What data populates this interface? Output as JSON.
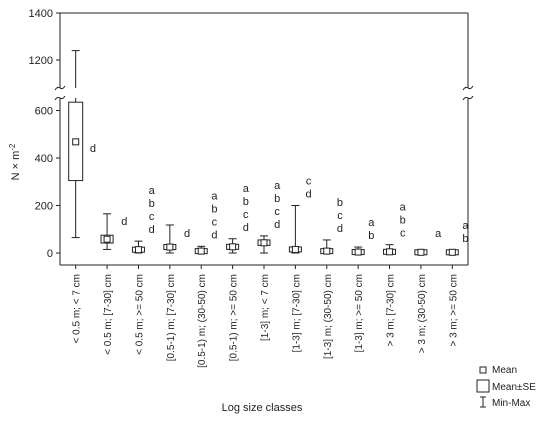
{
  "chart_data": {
    "type": "box",
    "ylabel": "N × m",
    "ylabel_sup": "-2",
    "xlabel": "Log size classes",
    "y_axis_break": [
      650,
      1000
    ],
    "yticks_lower": [
      "0",
      "200",
      "400",
      "600"
    ],
    "yticks_upper": [
      "1200",
      "1400"
    ],
    "categories": [
      "< 0.5 m; < 7 cm",
      "< 0.5 m; [7-30] cm",
      "< 0.5 m; >= 50 cm",
      "[0.5-1) m; [7-30] cm",
      "[0.5-1) m; (30-50) cm",
      "[0.5-1) m; >= 50 cm",
      "[1-3] m; < 7 cm",
      "[1-3] m; [7-30] cm",
      "[1-3] m; (30-50) cm",
      "[1-3] m; >= 50 cm",
      "> 3 m; [7-30] cm",
      "> 3 m; (30-50) cm",
      "> 3 m; >= 50 cm"
    ],
    "mean": [
      468,
      58,
      14,
      25,
      8,
      26,
      43,
      15,
      8,
      4,
      5,
      3,
      3
    ],
    "se_low": [
      305,
      42,
      8,
      15,
      3,
      18,
      32,
      9,
      3,
      1,
      2,
      1,
      1
    ],
    "se_high": [
      635,
      75,
      20,
      36,
      14,
      35,
      55,
      22,
      14,
      8,
      9,
      6,
      6
    ],
    "min": [
      65,
      15,
      0,
      0,
      0,
      0,
      0,
      0,
      0,
      0,
      0,
      0,
      0
    ],
    "max": [
      1240,
      165,
      50,
      118,
      28,
      60,
      72,
      200,
      55,
      25,
      35,
      12,
      12
    ],
    "letters": [
      [
        "d"
      ],
      [
        "d"
      ],
      [
        "a",
        "b",
        "c",
        "d"
      ],
      [
        "d"
      ],
      [
        "a",
        "b",
        "c",
        "d"
      ],
      [
        "a",
        "b",
        "c",
        "d"
      ],
      [
        "a",
        "b",
        "c",
        "d"
      ],
      [
        "c",
        "d"
      ],
      [
        "b",
        "c",
        "d"
      ],
      [
        "a",
        "b"
      ],
      [
        "a",
        "b",
        "c"
      ],
      [
        "a"
      ],
      [
        "a",
        "b"
      ]
    ],
    "legend": {
      "position": "bottom-right",
      "entries": [
        "Mean",
        "Mean±SE",
        "Min-Max"
      ]
    }
  }
}
